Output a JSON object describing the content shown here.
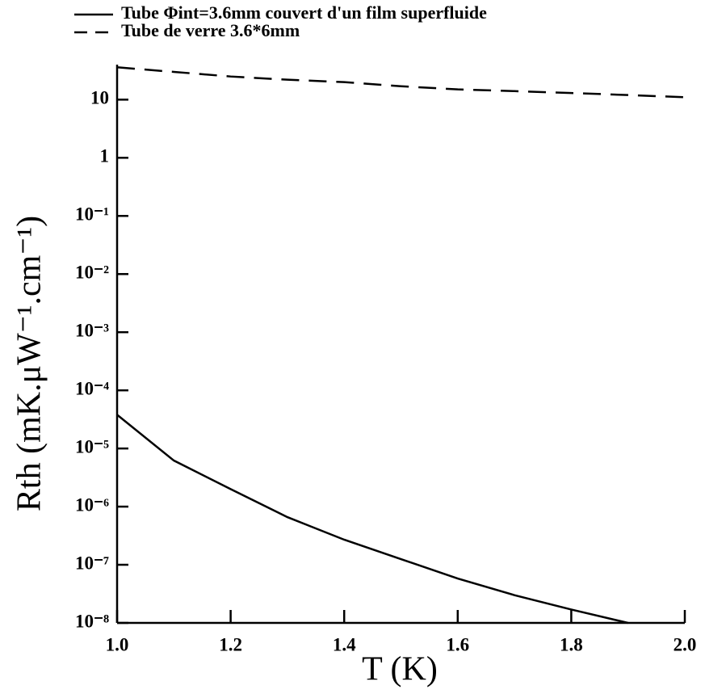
{
  "chart_data": {
    "type": "line",
    "xlabel": "T (K)",
    "ylabel": "Rth (mK.μW⁻¹.cm⁻¹)",
    "x": [
      1.0,
      1.1,
      1.2,
      1.3,
      1.4,
      1.5,
      1.6,
      1.7,
      1.8,
      1.9,
      2.0
    ],
    "series": [
      {
        "name": "Tube Φint=3.6mm couvert d'un film superfluide",
        "color": "#000000",
        "dash": "solid",
        "values": [
          3.8e-05,
          6.2e-06,
          2e-06,
          6.6e-07,
          2.7e-07,
          1.25e-07,
          5.8e-08,
          3e-08,
          1.7e-08,
          1e-08,
          null
        ]
      },
      {
        "name": "Tube de verre 3.6*6mm",
        "color": "#000000",
        "dash": "dashed",
        "values": [
          36,
          30,
          25,
          22,
          20,
          17,
          15,
          14,
          13,
          12,
          11
        ]
      }
    ],
    "xlim": [
      1.0,
      2.0
    ],
    "xticks": [
      {
        "value": 1.0,
        "label": "1.0"
      },
      1.2,
      1.4,
      1.6,
      1.8,
      {
        "value": 2.0,
        "label": "2.0"
      }
    ],
    "ylim": [
      1e-08,
      40
    ],
    "log_y": true,
    "yticks": [
      10,
      1,
      {
        "value": 0.1,
        "label": "10⁻¹"
      },
      {
        "value": 0.01,
        "label": "10⁻²"
      },
      {
        "value": 0.001,
        "label": "10⁻³"
      },
      {
        "value": 0.0001,
        "label": "10⁻⁴"
      },
      {
        "value": 1e-05,
        "label": "10⁻⁵"
      },
      {
        "value": 1e-06,
        "label": "10⁻⁶"
      },
      {
        "value": 1e-07,
        "label": "10⁻⁷"
      },
      {
        "value": 1e-08,
        "label": "10⁻⁸"
      }
    ],
    "grid": false,
    "legend": "top"
  }
}
